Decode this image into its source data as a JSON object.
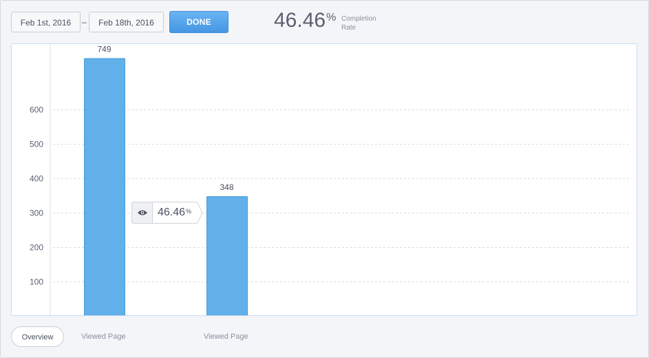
{
  "header": {
    "date_start": "Feb 1st, 2016",
    "date_separator": "–",
    "date_end": "Feb 18th, 2016",
    "done_label": "DONE",
    "completion_value": "46.46",
    "completion_symbol": "%",
    "completion_label_1": "Completion",
    "completion_label_2": "Rate"
  },
  "conversion_flag": {
    "icon": "eye-icon",
    "value": "46.46",
    "symbol": "%"
  },
  "tabs": {
    "overview": "Overview",
    "step_1": "Viewed Page",
    "step_2": "Viewed Page"
  },
  "colors": {
    "bar": "#62b0ea",
    "bar_border": "#4a9ad8",
    "accent": "#4596e4"
  },
  "chart_data": {
    "type": "bar",
    "categories": [
      "Viewed Page",
      "Viewed Page"
    ],
    "values": [
      749,
      348
    ],
    "data_labels": [
      "749",
      "348"
    ],
    "y_ticks": [
      100,
      200,
      300,
      400,
      500,
      600
    ],
    "ylim": [
      0,
      790
    ],
    "grid": true,
    "title": "",
    "xlabel": "",
    "ylabel": ""
  }
}
